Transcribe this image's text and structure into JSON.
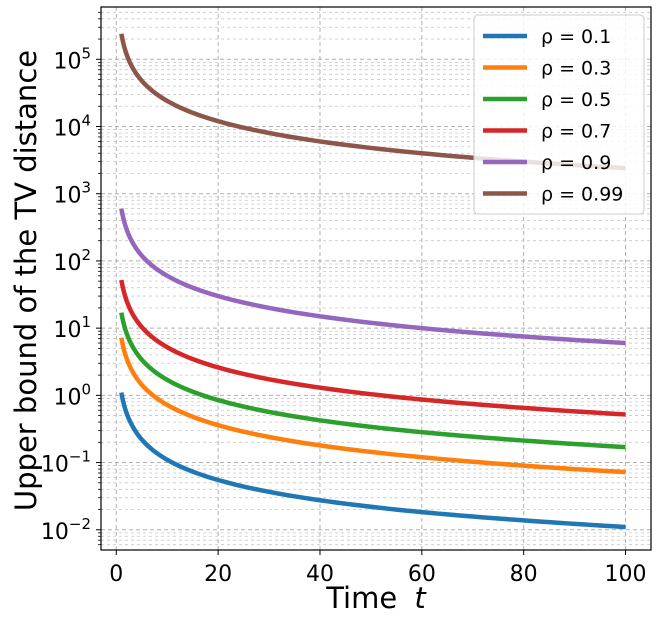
{
  "chart_data": {
    "type": "line",
    "title": "",
    "xlabel": "Time",
    "xlabel_italic": "t",
    "ylabel": "Upper bound of the TV distance",
    "xscale": "linear",
    "yscale": "log",
    "xlim": [
      -3,
      105
    ],
    "ylim": [
      0.005,
      600000
    ],
    "xticks": [
      0,
      20,
      40,
      60,
      80,
      100
    ],
    "yticks": [
      {
        "value": 0.01,
        "base": "10",
        "exp": "−2"
      },
      {
        "value": 0.1,
        "base": "10",
        "exp": "−1"
      },
      {
        "value": 1,
        "base": "10",
        "exp": "0"
      },
      {
        "value": 10,
        "base": "10",
        "exp": "1"
      },
      {
        "value": 100,
        "base": "10",
        "exp": "2"
      },
      {
        "value": 1000,
        "base": "10",
        "exp": "3"
      },
      {
        "value": 10000,
        "base": "10",
        "exp": "4"
      },
      {
        "value": 100000,
        "base": "10",
        "exp": "5"
      }
    ],
    "grid": true,
    "legend_position": "top-right",
    "series": [
      {
        "name": "ρ = 0.1",
        "color": "#1f77b4",
        "x": [
          1,
          2,
          3,
          5,
          10,
          20,
          40,
          60,
          80,
          100
        ],
        "y": [
          1.1,
          0.55,
          0.37,
          0.22,
          0.11,
          0.055,
          0.0275,
          0.0183,
          0.0138,
          0.011
        ]
      },
      {
        "name": "ρ = 0.3",
        "color": "#ff7f0e",
        "x": [
          1,
          2,
          3,
          5,
          10,
          20,
          40,
          60,
          80,
          100
        ],
        "y": [
          7.2,
          3.6,
          2.4,
          1.44,
          0.72,
          0.36,
          0.18,
          0.12,
          0.09,
          0.072
        ]
      },
      {
        "name": "ρ = 0.5",
        "color": "#2ca02c",
        "x": [
          1,
          2,
          3,
          5,
          10,
          20,
          40,
          60,
          80,
          100
        ],
        "y": [
          17,
          8.5,
          5.67,
          3.4,
          1.7,
          0.85,
          0.425,
          0.283,
          0.2125,
          0.17
        ]
      },
      {
        "name": "ρ = 0.7",
        "color": "#d62728",
        "x": [
          1,
          2,
          3,
          5,
          10,
          20,
          40,
          60,
          80,
          100
        ],
        "y": [
          52,
          26,
          17.3,
          10.4,
          5.2,
          2.6,
          1.3,
          0.867,
          0.65,
          0.52
        ]
      },
      {
        "name": "ρ = 0.9",
        "color": "#9467bd",
        "x": [
          1,
          2,
          3,
          5,
          10,
          20,
          40,
          60,
          80,
          100
        ],
        "y": [
          600,
          300,
          200,
          120,
          60,
          30,
          15,
          10,
          7.5,
          6
        ]
      },
      {
        "name": "ρ = 0.99",
        "color": "#8c564b",
        "x": [
          1,
          2,
          3,
          5,
          10,
          20,
          40,
          60,
          80,
          100
        ],
        "y": [
          240000,
          120000,
          80000,
          48000,
          24000,
          12000,
          6000,
          4000,
          3000,
          2400
        ]
      }
    ]
  }
}
